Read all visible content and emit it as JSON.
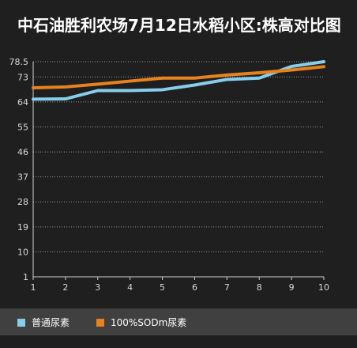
{
  "chart_data": {
    "type": "line",
    "title": "中石油胜利农场7月12日水稻小区:株高对比图",
    "x": [
      1,
      2,
      3,
      4,
      5,
      6,
      7,
      8,
      9,
      10
    ],
    "y_ticks": [
      "1",
      "10",
      "19",
      "28",
      "37",
      "46",
      "55",
      "64",
      "73",
      "78.5"
    ],
    "ylim": [
      1,
      78.5
    ],
    "grid": true,
    "legend_position": "bottom",
    "series": [
      {
        "name": "普通尿素",
        "color": "#87ceeb",
        "values": [
          65.0,
          65.1,
          68.1,
          68.1,
          68.4,
          70.1,
          72.1,
          72.6,
          76.8,
          78.5
        ]
      },
      {
        "name": "100%SODm尿素",
        "color": "#e8821e",
        "values": [
          69.1,
          69.4,
          70.4,
          71.5,
          72.6,
          72.6,
          73.7,
          74.5,
          75.5,
          76.7
        ]
      }
    ]
  }
}
